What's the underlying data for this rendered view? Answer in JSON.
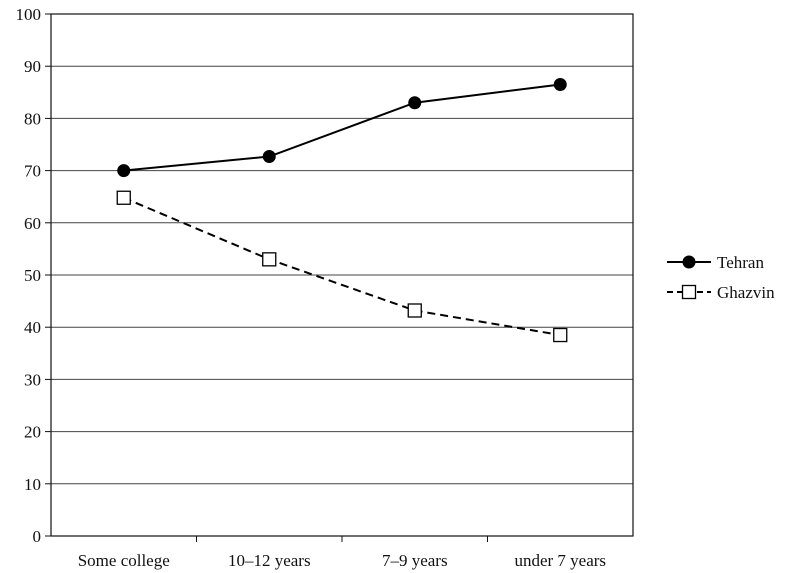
{
  "chart_data": {
    "type": "line",
    "title": "",
    "xlabel": "",
    "ylabel": "",
    "categories": [
      "Some college",
      "10–12 years",
      "7–9 years",
      "under 7 years"
    ],
    "ylim": [
      0,
      100
    ],
    "yticks": [
      0,
      10,
      20,
      30,
      40,
      50,
      60,
      70,
      80,
      90,
      100
    ],
    "grid": "horizontal",
    "legend_position": "right",
    "series": [
      {
        "name": "Tehran",
        "values": [
          70,
          72.7,
          83,
          86.5
        ],
        "line_style": "solid",
        "marker": "filled-circle",
        "color": "#000000"
      },
      {
        "name": "Ghazvin",
        "values": [
          64.8,
          53,
          43.2,
          38.5
        ],
        "line_style": "dashed",
        "marker": "open-square",
        "color": "#000000"
      }
    ]
  }
}
